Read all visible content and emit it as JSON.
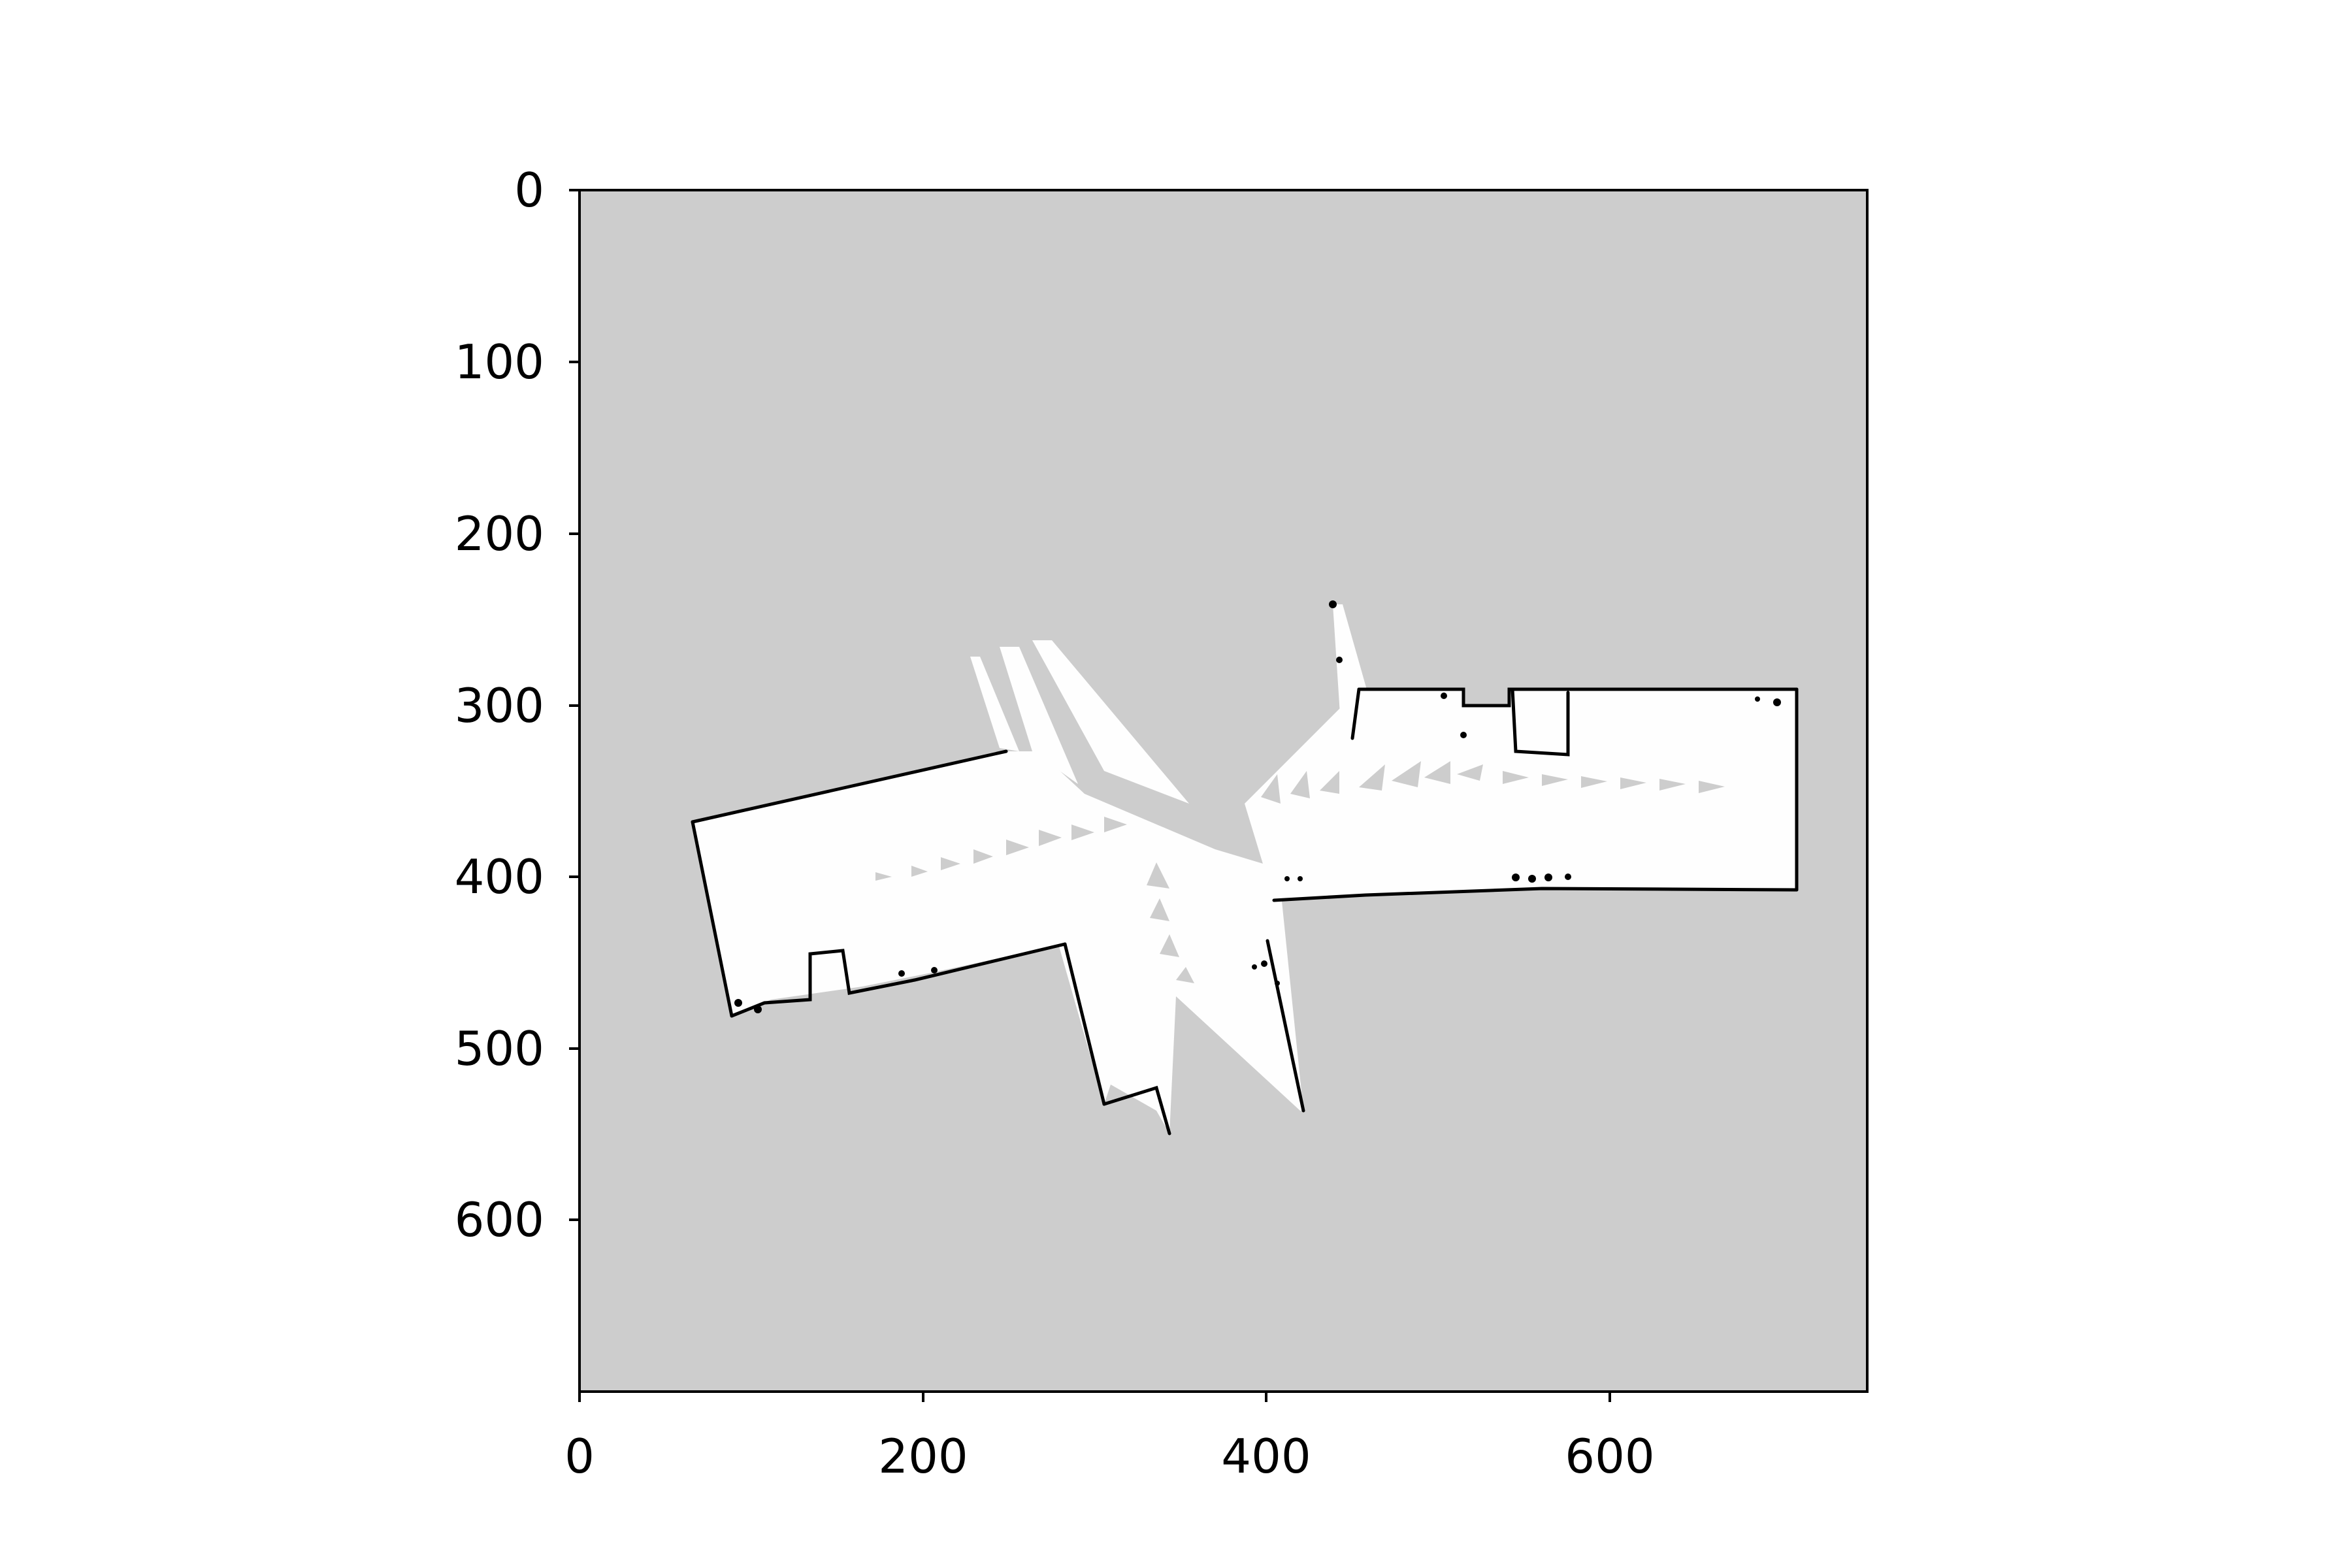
{
  "figure": {
    "x_ticks": [
      "0",
      "200",
      "400",
      "600"
    ],
    "y_ticks": [
      "0",
      "100",
      "200",
      "300",
      "400",
      "500",
      "600"
    ]
  },
  "map": {
    "type": "occupancy-grid",
    "x_range": [
      0,
      750
    ],
    "y_range": [
      700,
      0
    ],
    "colors": {
      "unknown": "#cdcdcd",
      "free": "#fefefe",
      "occupied": "#000000"
    }
  }
}
